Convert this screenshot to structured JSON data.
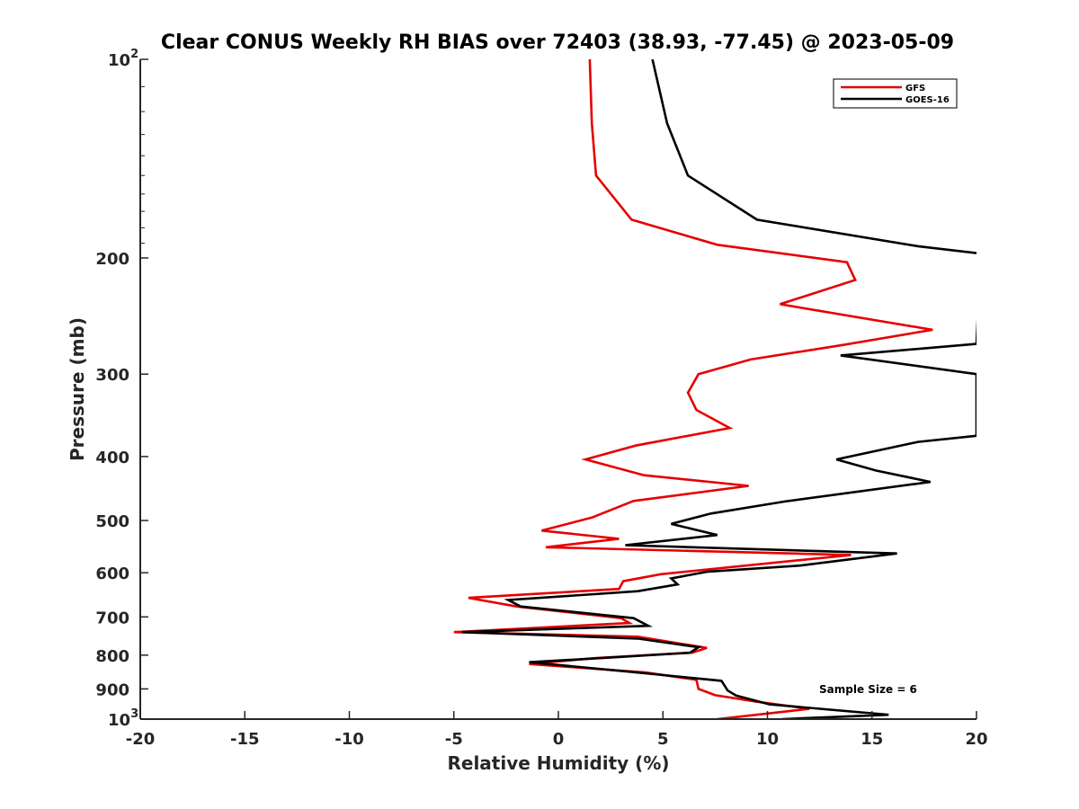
{
  "chart_data": {
    "type": "line",
    "title": "Clear CONUS Weekly RH BIAS over 72403 (38.93, -77.45) @ 2023-05-09",
    "xlabel": "Relative Humidity (%)",
    "ylabel": "Pressure (mb)",
    "xlim": [
      -20,
      20
    ],
    "ylim": [
      100,
      1000
    ],
    "y_scale": "log",
    "y_reversed": true,
    "x_ticks": [
      "-20",
      "-15",
      "-10",
      "-5",
      "0",
      "5",
      "10",
      "15",
      "20"
    ],
    "y_ticks": [
      {
        "value": 100,
        "label": "10",
        "sup": "2"
      },
      {
        "value": 200,
        "label": "200",
        "sup": ""
      },
      {
        "value": 300,
        "label": "300",
        "sup": ""
      },
      {
        "value": 400,
        "label": "400",
        "sup": ""
      },
      {
        "value": 500,
        "label": "500",
        "sup": ""
      },
      {
        "value": 600,
        "label": "600",
        "sup": ""
      },
      {
        "value": 700,
        "label": "700",
        "sup": ""
      },
      {
        "value": 800,
        "label": "800",
        "sup": ""
      },
      {
        "value": 900,
        "label": "900",
        "sup": ""
      },
      {
        "value": 1000,
        "label": "10",
        "sup": "3"
      }
    ],
    "grid": false,
    "legend_position": "top-right",
    "annotation": "Sample Size = 6",
    "series": [
      {
        "name": "GFS",
        "color": "#e60000",
        "points": [
          [
            1.5,
            100
          ],
          [
            1.6,
            125
          ],
          [
            1.8,
            150
          ],
          [
            3.5,
            175
          ],
          [
            7.6,
            191
          ],
          [
            13.8,
            203
          ],
          [
            14.2,
            216
          ],
          [
            10.6,
            235
          ],
          [
            17.9,
            257
          ],
          [
            13.6,
            271
          ],
          [
            9.2,
            285
          ],
          [
            6.7,
            300
          ],
          [
            6.2,
            320
          ],
          [
            6.6,
            340
          ],
          [
            8.2,
            362
          ],
          [
            3.7,
            385
          ],
          [
            1.3,
            404
          ],
          [
            4.1,
            427
          ],
          [
            9.1,
            443
          ],
          [
            3.6,
            467
          ],
          [
            1.6,
            495
          ],
          [
            -0.8,
            518
          ],
          [
            2.9,
            533
          ],
          [
            -0.6,
            549
          ],
          [
            14.0,
            564
          ],
          [
            4.9,
            603
          ],
          [
            3.1,
            618
          ],
          [
            2.9,
            635
          ],
          [
            -4.3,
            655
          ],
          [
            -2.0,
            675
          ],
          [
            3.0,
            703
          ],
          [
            3.4,
            715
          ],
          [
            -5.0,
            738
          ],
          [
            3.8,
            750
          ],
          [
            7.1,
            780
          ],
          [
            6.4,
            793
          ],
          [
            1.8,
            808
          ],
          [
            -1.4,
            825
          ],
          [
            4.2,
            850
          ],
          [
            6.6,
            872
          ],
          [
            6.7,
            900
          ],
          [
            7.5,
            920
          ],
          [
            9.4,
            940
          ],
          [
            12.0,
            965
          ],
          [
            10.1,
            980
          ],
          [
            7.6,
            1000
          ]
        ]
      },
      {
        "name": "GOES-16",
        "color": "#000000",
        "points": [
          [
            4.5,
            100
          ],
          [
            5.2,
            125
          ],
          [
            6.2,
            150
          ],
          [
            9.5,
            175
          ],
          [
            17.2,
            192
          ],
          [
            20.2,
            197
          ],
          [
            20.0,
            270
          ],
          [
            13.5,
            281
          ],
          [
            20.0,
            300
          ],
          [
            20.0,
            372
          ],
          [
            17.2,
            380
          ],
          [
            13.3,
            404
          ],
          [
            15.2,
            420
          ],
          [
            17.8,
            437
          ],
          [
            10.8,
            468
          ],
          [
            7.3,
            488
          ],
          [
            5.4,
            506
          ],
          [
            7.6,
            526
          ],
          [
            3.2,
            545
          ],
          [
            16.2,
            561
          ],
          [
            11.6,
            585
          ],
          [
            7.1,
            598
          ],
          [
            5.4,
            612
          ],
          [
            5.7,
            625
          ],
          [
            3.8,
            640
          ],
          [
            -2.4,
            660
          ],
          [
            -1.8,
            675
          ],
          [
            3.6,
            703
          ],
          [
            4.3,
            722
          ],
          [
            -4.6,
            738
          ],
          [
            3.8,
            755
          ],
          [
            6.7,
            778
          ],
          [
            6.3,
            793
          ],
          [
            2.7,
            806
          ],
          [
            -1.4,
            820
          ],
          [
            3.8,
            850
          ],
          [
            7.8,
            875
          ],
          [
            8.1,
            905
          ],
          [
            8.5,
            921
          ],
          [
            10.1,
            950
          ],
          [
            15.8,
            985
          ],
          [
            10.7,
            1000
          ]
        ]
      }
    ]
  }
}
